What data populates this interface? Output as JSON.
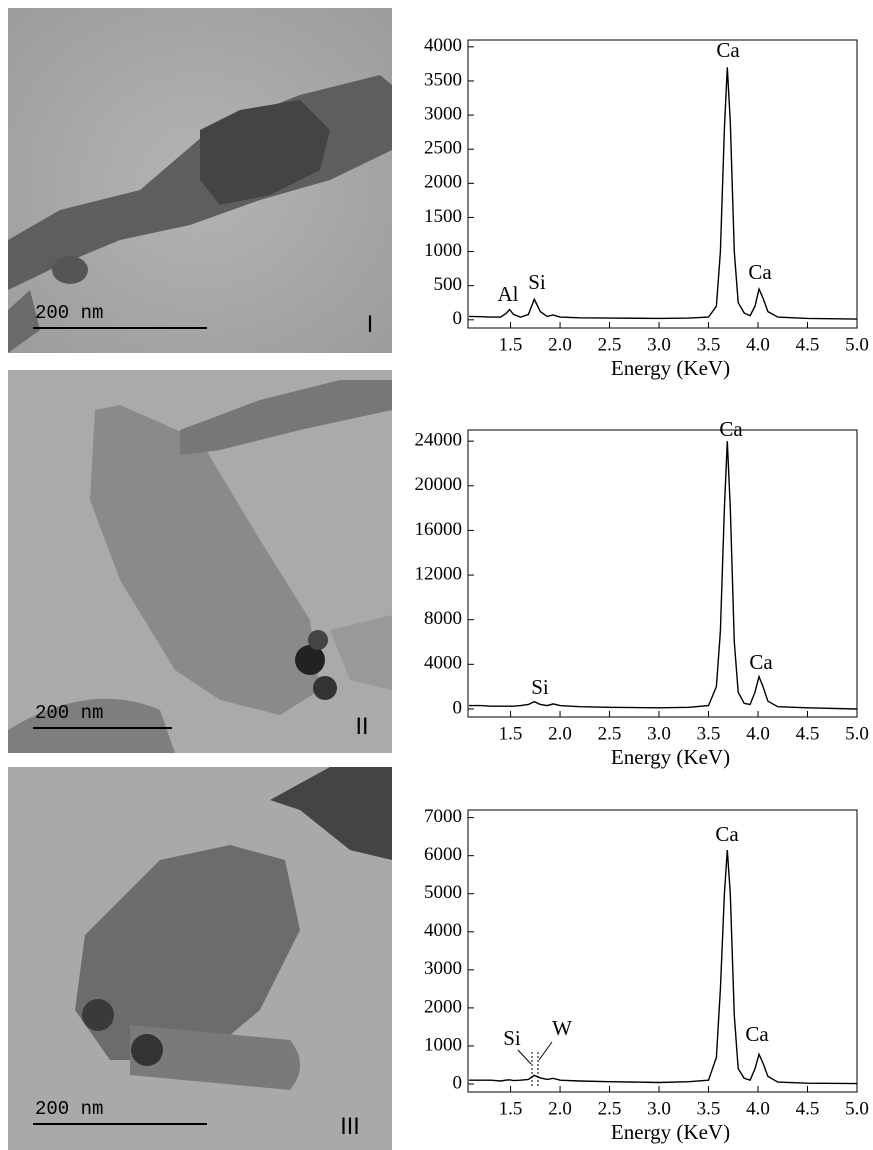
{
  "panels": [
    {
      "scale_bar": "200 nm",
      "label": "I"
    },
    {
      "scale_bar": "200 nm",
      "label": "II"
    },
    {
      "scale_bar": "200 nm",
      "label": "III"
    }
  ],
  "chart_data": [
    {
      "type": "line",
      "x_label": "Energy (KeV)",
      "color": "#000000",
      "annotations": [
        "Al",
        "Si",
        "Ca",
        "Ca"
      ],
      "x": [
        1.08,
        1.2,
        1.3,
        1.4,
        1.45,
        1.49,
        1.53,
        1.6,
        1.68,
        1.74,
        1.8,
        1.87,
        1.93,
        2.0,
        2.2,
        2.5,
        3.0,
        3.3,
        3.5,
        3.58,
        3.62,
        3.66,
        3.69,
        3.72,
        3.76,
        3.8,
        3.86,
        3.92,
        3.97,
        4.01,
        4.05,
        4.1,
        4.2,
        4.5,
        5.0
      ],
      "values": [
        50,
        45,
        40,
        40,
        90,
        150,
        80,
        40,
        80,
        300,
        120,
        50,
        70,
        40,
        30,
        25,
        20,
        25,
        40,
        200,
        1000,
        2800,
        3700,
        2900,
        1000,
        250,
        100,
        60,
        200,
        450,
        320,
        120,
        40,
        20,
        10
      ],
      "xlim": [
        1.07,
        5.0
      ],
      "ylim": [
        -120,
        4100
      ],
      "xticks": [
        1.5,
        {
          "value": 2,
          "label": "2.0"
        },
        2.5,
        {
          "value": 3,
          "label": "3.0"
        },
        3.5,
        {
          "value": 4,
          "label": "4.0"
        },
        4.5,
        {
          "value": 5,
          "label": "5.0"
        }
      ],
      "yticks": [
        0,
        500,
        1000,
        1500,
        2000,
        2500,
        3000,
        3500,
        4000
      ]
    },
    {
      "type": "line",
      "x_label": "Energy (KeV)",
      "color": "#000000",
      "annotations": [
        "Si",
        "Ca",
        "Ca"
      ],
      "x": [
        1.08,
        1.2,
        1.3,
        1.4,
        1.45,
        1.49,
        1.53,
        1.6,
        1.68,
        1.74,
        1.8,
        1.87,
        1.93,
        2.0,
        2.2,
        2.5,
        3.0,
        3.3,
        3.5,
        3.58,
        3.62,
        3.66,
        3.69,
        3.72,
        3.76,
        3.8,
        3.86,
        3.92,
        3.97,
        4.01,
        4.05,
        4.1,
        4.2,
        4.5,
        5.0
      ],
      "values": [
        300,
        300,
        250,
        250,
        250,
        250,
        250,
        300,
        400,
        650,
        400,
        300,
        450,
        300,
        200,
        150,
        100,
        150,
        300,
        2000,
        7000,
        18000,
        24000,
        18000,
        6000,
        1500,
        500,
        400,
        1500,
        2900,
        2000,
        700,
        200,
        100,
        0
      ],
      "xlim": [
        1.07,
        5.0
      ],
      "ylim": [
        -720,
        25000
      ],
      "xticks": [
        1.5,
        {
          "value": 2,
          "label": "2.0"
        },
        2.5,
        {
          "value": 3,
          "label": "3.0"
        },
        3.5,
        {
          "value": 4,
          "label": "4.0"
        },
        4.5,
        {
          "value": 5,
          "label": "5.0"
        }
      ],
      "yticks": [
        0,
        4000,
        8000,
        12000,
        16000,
        20000,
        24000
      ]
    },
    {
      "type": "line",
      "x_label": "Energy (KeV)",
      "color": "#000000",
      "annotations": [
        "Si",
        "W",
        "Ca",
        "Ca"
      ],
      "x": [
        1.08,
        1.2,
        1.3,
        1.4,
        1.45,
        1.49,
        1.53,
        1.6,
        1.68,
        1.74,
        1.8,
        1.87,
        1.93,
        2.0,
        2.2,
        2.5,
        3.0,
        3.3,
        3.5,
        3.58,
        3.62,
        3.66,
        3.69,
        3.72,
        3.76,
        3.8,
        3.86,
        3.92,
        3.97,
        4.01,
        4.05,
        4.1,
        4.2,
        4.5,
        5.0
      ],
      "values": [
        100,
        100,
        100,
        80,
        100,
        110,
        90,
        100,
        120,
        230,
        160,
        120,
        150,
        100,
        80,
        60,
        40,
        60,
        100,
        700,
        2500,
        5000,
        6150,
        5000,
        1800,
        400,
        150,
        100,
        400,
        780,
        550,
        200,
        50,
        20,
        10
      ],
      "xlim": [
        1.07,
        5.0
      ],
      "ylim": [
        -210,
        7200
      ],
      "xticks": [
        1.5,
        {
          "value": 2,
          "label": "2.0"
        },
        2.5,
        {
          "value": 3,
          "label": "3.0"
        },
        3.5,
        {
          "value": 4,
          "label": "4.0"
        },
        4.5,
        {
          "value": 5,
          "label": "5.0"
        }
      ],
      "yticks": [
        0,
        1000,
        2000,
        3000,
        4000,
        5000,
        6000,
        7000
      ]
    }
  ]
}
